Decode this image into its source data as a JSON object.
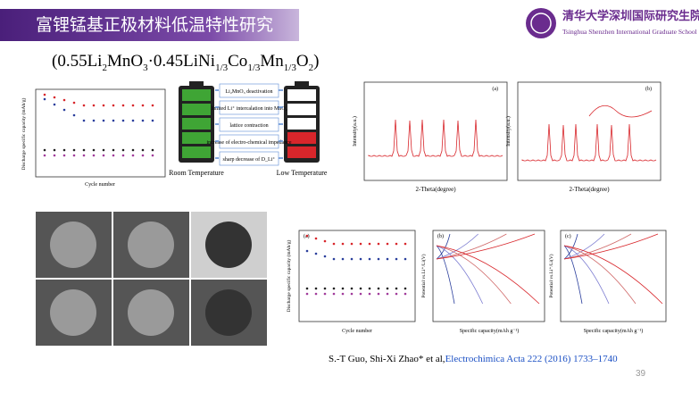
{
  "header": {
    "title": "富锂锰基正极材料低温特性研究"
  },
  "logo": {
    "name": "清华大学深圳国际研究生院",
    "english": "Tsinghua Shenzhen International Graduate School"
  },
  "formula": [
    {
      "text": "(0.55Li"
    },
    {
      "sub": "2"
    },
    {
      "text": "MnO"
    },
    {
      "sub": "3"
    },
    {
      "text": "·0.45LiNi"
    },
    {
      "sub": "1/3"
    },
    {
      "text": "Co"
    },
    {
      "sub": "1/3"
    },
    {
      "text": "Mn"
    },
    {
      "sub": "1/3"
    },
    {
      "text": "O"
    },
    {
      "sub": "2"
    },
    {
      "text": ")"
    }
  ],
  "diagram": {
    "mechanisms": [
      "Li₂MnO₃ deactivation",
      "limited Li⁺ intercalation into MnO₂",
      "lattice contraction",
      "increase of electro-chemical impedance",
      "sharp decrease of D_Li⁺"
    ],
    "room": "Room Temperature",
    "low": "Low Temperature"
  },
  "figures": {
    "cycle_x": "Cycle number",
    "cycle_y": "Discharge specific capacity (mAh/g)",
    "xrd_x": "2-Theta(degree)",
    "xrd_y": "Intensity(a.u.)",
    "capacity_x": "Specific capacity(mAh g⁻¹)",
    "potential_y": "Potential vs.Li⁺/Li(V)",
    "panels": [
      "(a)",
      "(b)",
      "(c)"
    ]
  },
  "citation": {
    "authors": "S.-T Guo, Shi-Xi Zhao* et al,",
    "journal": "Electrochimica Acta 222 (2016) 1733–1740"
  },
  "page_number": "39"
}
